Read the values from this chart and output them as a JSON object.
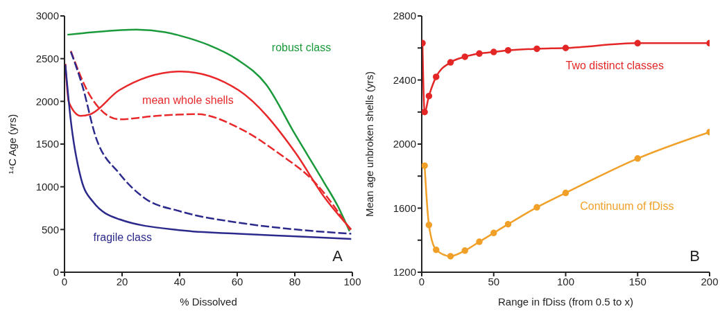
{
  "chart_data": [
    {
      "type": "line",
      "xlabel": "% Dissolved",
      "ylabel": "¹⁴C Age (yrs)",
      "xlim": [
        0,
        100
      ],
      "xticks": [
        0,
        20,
        40,
        60,
        80,
        100
      ],
      "ylim": [
        0,
        3000
      ],
      "yticks": [
        0,
        500,
        1000,
        1500,
        2000,
        2500,
        3000
      ],
      "grid": false,
      "legend": false,
      "marker": "none",
      "annotations": [
        "A"
      ],
      "series": [
        {
          "name": "robust class",
          "color": "#1a9a3a",
          "line_style": "solid",
          "x": [
            1,
            10,
            25,
            35,
            40,
            50,
            60,
            70,
            80,
            90,
            95,
            99
          ],
          "values": [
            2780,
            2810,
            2840,
            2810,
            2770,
            2660,
            2490,
            2200,
            1620,
            1060,
            770,
            480
          ]
        },
        {
          "name": "mean whole shells",
          "color": "#e8282a",
          "line_style": "solid",
          "x": [
            0.3,
            1.5,
            5.6,
            9,
            19,
            40.5,
            60.5,
            80.4,
            89.8,
            99.6
          ],
          "values": [
            2440,
            1990,
            1830,
            1850,
            2130,
            2350,
            2130,
            1390,
            900,
            500
          ]
        },
        {
          "color": "#e8282a",
          "line_style": "dashed",
          "x": [
            2.2,
            9,
            19,
            32,
            46,
            60.5,
            74.5,
            87.3,
            99.6
          ],
          "values": [
            2590,
            2060,
            1790,
            1830,
            1850,
            1690,
            1390,
            1040,
            480
          ]
        },
        {
          "name": "fragile class",
          "color": "#2b2a8c",
          "line_style": "solid",
          "x": [
            0.3,
            2,
            5.8,
            10,
            19,
            40.5,
            60.5,
            80.4,
            99.6
          ],
          "values": [
            2430,
            1830,
            1090,
            820,
            620,
            490,
            450,
            420,
            390
          ]
        },
        {
          "color": "#2b2a8c",
          "line_style": "dashed",
          "x": [
            2.2,
            6.4,
            10.6,
            19.2,
            27.7,
            40.5,
            60.5,
            80.4,
            99.6
          ],
          "values": [
            2580,
            2160,
            1610,
            1150,
            870,
            710,
            580,
            500,
            450
          ]
        }
      ]
    },
    {
      "type": "line",
      "xlabel": "Range in fDiss (from 0.5 to x)",
      "ylabel": "Mean age unbroken shells (yrs)",
      "xlim": [
        0,
        200
      ],
      "xticks": [
        0,
        50,
        100,
        150,
        200
      ],
      "ylim": [
        1200,
        2800
      ],
      "yticks": [
        1200,
        {
          "value": 1400,
          "label": null
        },
        1600,
        {
          "value": 1800,
          "label": null
        },
        2000,
        {
          "value": 2200,
          "label": null
        },
        2400,
        {
          "value": 2600,
          "label": null
        },
        2800
      ],
      "grid": false,
      "legend": false,
      "marker": "circle",
      "annotations": [
        "B"
      ],
      "series": [
        {
          "name": "Two distinct classes",
          "color": "#e32726",
          "line_style": "solid",
          "x": [
            0.5,
            2,
            5,
            10,
            20,
            30,
            40,
            50,
            60,
            80,
            100,
            150,
            200
          ],
          "values": [
            2630,
            2200,
            2300,
            2420,
            2510,
            2545,
            2565,
            2575,
            2585,
            2595,
            2600,
            2630,
            2630
          ]
        },
        {
          "name": "Continuum of fDiss",
          "color": "#f0a028",
          "line_style": "solid",
          "x": [
            2,
            5,
            10,
            20,
            30,
            40,
            50,
            60,
            80,
            100,
            150,
            200
          ],
          "values": [
            1865,
            1495,
            1340,
            1300,
            1335,
            1390,
            1445,
            1500,
            1605,
            1695,
            1910,
            2075
          ]
        }
      ]
    }
  ]
}
